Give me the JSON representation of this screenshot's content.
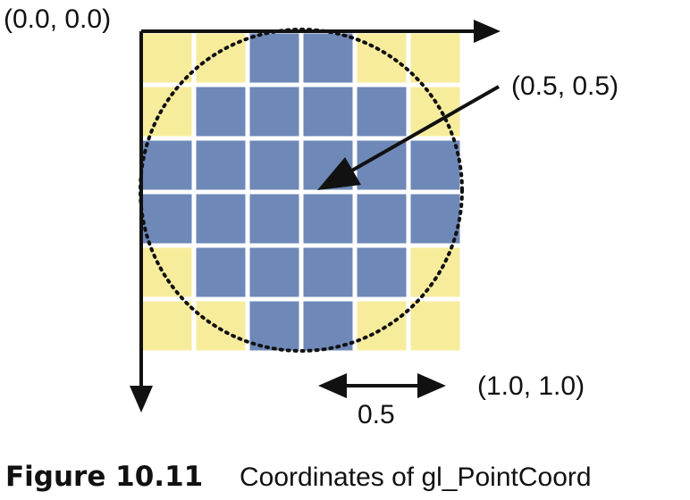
{
  "labels": {
    "origin": "(0.0, 0.0)",
    "center": "(0.5, 0.5)",
    "corner": "(1.0, 1.0)",
    "half": "0.5"
  },
  "caption": {
    "number": "Figure 10.11",
    "text": "Coordinates of gl_PointCoord"
  },
  "colors": {
    "inside": "#6e88b8",
    "outside": "#f7ec9c",
    "ink": "#111111"
  },
  "grid": {
    "rows": 6,
    "cols": 6,
    "inside_mask": [
      [
        0,
        0,
        1,
        1,
        0,
        0
      ],
      [
        0,
        1,
        1,
        1,
        1,
        0
      ],
      [
        1,
        1,
        1,
        1,
        1,
        1
      ],
      [
        1,
        1,
        1,
        1,
        1,
        1
      ],
      [
        0,
        1,
        1,
        1,
        1,
        0
      ],
      [
        0,
        0,
        1,
        1,
        0,
        0
      ]
    ]
  }
}
